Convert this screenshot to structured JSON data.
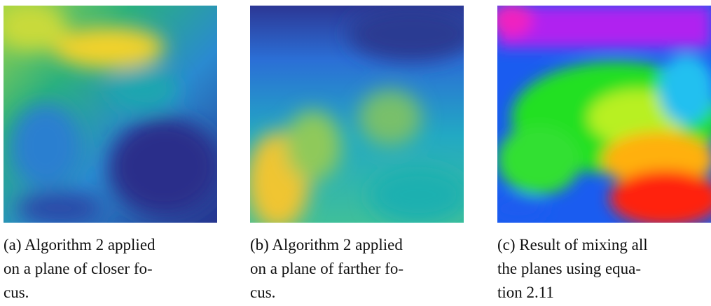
{
  "figures": [
    {
      "caption_lines": [
        "(a) Algorithm 2 applied",
        "on a plane of closer fo-",
        "cus."
      ]
    },
    {
      "caption_lines": [
        "(b) Algorithm 2 applied",
        "on a plane of farther fo-",
        "cus."
      ]
    },
    {
      "caption_lines": [
        "(c) Result of mixing all",
        "the planes using equa-",
        "tion 2.11"
      ]
    }
  ]
}
